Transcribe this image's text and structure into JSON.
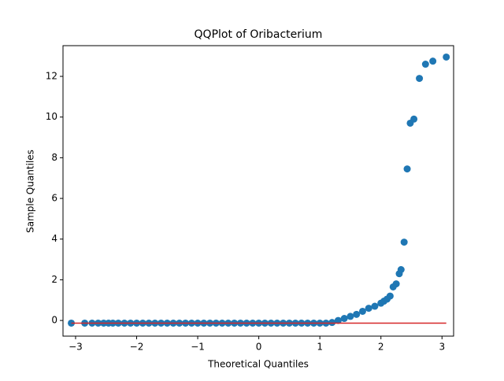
{
  "chart_data": {
    "type": "scatter",
    "title": "QQPlot of Oribacterium",
    "x_label": "Theoretical Quantiles",
    "y_label": "Sample Quantiles",
    "xlim": [
      -3.206,
      3.19
    ],
    "ylim": [
      -0.77,
      13.51
    ],
    "xticks": [
      {
        "value": -3,
        "label": "−3"
      },
      {
        "value": -2,
        "label": "−2"
      },
      {
        "value": -1,
        "label": "−1"
      },
      0,
      1,
      2,
      3
    ],
    "yticks": [
      0,
      2,
      4,
      6,
      8,
      10,
      12
    ],
    "points": {
      "color": "#1f77b4",
      "x": [
        -3.07,
        -2.85,
        -2.73,
        -2.63,
        -2.54,
        -2.46,
        -2.39,
        -2.3,
        -2.2,
        -2.1,
        -2.0,
        -1.9,
        -1.8,
        -1.7,
        -1.6,
        -1.5,
        -1.4,
        -1.3,
        -1.2,
        -1.1,
        -1.0,
        -0.9,
        -0.8,
        -0.7,
        -0.6,
        -0.5,
        -0.4,
        -0.3,
        -0.2,
        -0.1,
        0,
        0.1,
        0.2,
        0.3,
        0.4,
        0.5,
        0.6,
        0.7,
        0.8,
        0.9,
        1.0,
        1.1,
        1.2,
        1.3,
        1.4,
        1.5,
        1.6,
        1.7,
        1.8,
        1.9,
        2.0,
        2.05,
        2.1,
        2.15,
        2.2,
        2.25,
        2.3,
        2.33,
        2.38,
        2.43,
        2.48,
        2.54,
        2.63,
        2.73,
        2.85,
        3.07
      ],
      "y": [
        -0.13,
        -0.13,
        -0.13,
        -0.13,
        -0.13,
        -0.13,
        -0.13,
        -0.13,
        -0.13,
        -0.13,
        -0.13,
        -0.13,
        -0.13,
        -0.13,
        -0.13,
        -0.13,
        -0.13,
        -0.13,
        -0.13,
        -0.13,
        -0.13,
        -0.13,
        -0.13,
        -0.13,
        -0.13,
        -0.13,
        -0.13,
        -0.13,
        -0.13,
        -0.13,
        -0.13,
        -0.13,
        -0.13,
        -0.13,
        -0.13,
        -0.13,
        -0.13,
        -0.13,
        -0.13,
        -0.13,
        -0.13,
        -0.13,
        -0.1,
        0.0,
        0.1,
        0.2,
        0.3,
        0.45,
        0.6,
        0.7,
        0.85,
        0.95,
        1.05,
        1.2,
        1.65,
        1.8,
        2.3,
        2.5,
        3.85,
        7.45,
        9.7,
        9.9,
        11.9,
        12.6,
        12.75,
        12.95
      ]
    },
    "reference_line": {
      "color": "#d62728",
      "x": [
        -3.07,
        3.07
      ],
      "y": [
        -0.13,
        -0.13
      ]
    }
  }
}
